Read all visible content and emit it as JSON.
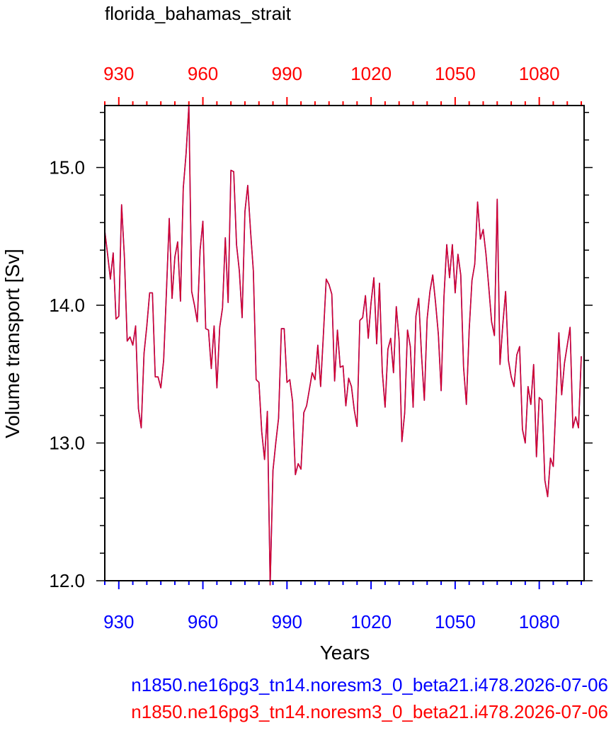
{
  "chart_data": {
    "type": "line",
    "title": "florida_bahamas_strait",
    "xlabel": "Years",
    "ylabel": "Volume transport [Sv]",
    "xlim": [
      925,
      1096
    ],
    "ylim": [
      12.0,
      15.45
    ],
    "x_ticks": [
      930,
      960,
      990,
      1020,
      1050,
      1080
    ],
    "x_tick_labels": [
      "930",
      "960",
      "990",
      "1020",
      "1050",
      "1080"
    ],
    "y_ticks": [
      12.0,
      13.0,
      14.0,
      15.0
    ],
    "y_tick_labels": [
      "12.0",
      "13.0",
      "14.0",
      "15.0"
    ],
    "colors": {
      "bottom_axis_labels": "#0000ff",
      "top_axis_labels": "#ff0000",
      "series_blue": "#0000ff",
      "series_red": "#ff0000",
      "frame": "#000000"
    },
    "series": [
      {
        "name": "n1850.ne16pg3_tn14.noresm3_0_beta21.i478.2026-07-06",
        "color": "#0000ff",
        "x_start": 925,
        "values": [
          14.54,
          14.37,
          14.19,
          14.38,
          13.9,
          13.92,
          14.73,
          14.35,
          13.74,
          13.77,
          13.71,
          13.85,
          13.25,
          13.11,
          13.65,
          13.85,
          14.09,
          14.09,
          13.48,
          13.48,
          13.4,
          13.6,
          14.1,
          14.63,
          14.05,
          14.35,
          14.46,
          14.03,
          14.85,
          15.1,
          15.45,
          14.1,
          14.0,
          13.88,
          14.4,
          14.61,
          13.83,
          13.82,
          13.54,
          13.85,
          13.4,
          13.84,
          13.98,
          14.49,
          14.02,
          14.98,
          14.97,
          14.44,
          14.25,
          13.91,
          14.68,
          14.87,
          14.54,
          14.25,
          13.46,
          13.44,
          13.08,
          12.88,
          13.23,
          11.97,
          12.8,
          13.0,
          13.18,
          13.83,
          13.83,
          13.44,
          13.46,
          13.3,
          12.77,
          12.85,
          12.81,
          13.22,
          13.27,
          13.39,
          13.51,
          13.46,
          13.71,
          13.41,
          13.79,
          14.19,
          14.15,
          14.08,
          13.45,
          13.82,
          13.55,
          13.56,
          13.27,
          13.47,
          13.41,
          13.24,
          13.12,
          13.89,
          13.91,
          14.07,
          13.76,
          14.02,
          14.2,
          13.72,
          14.16,
          13.52,
          13.26,
          13.68,
          13.76,
          13.51,
          13.99,
          13.75,
          13.01,
          13.22,
          13.82,
          13.7,
          13.26,
          13.92,
          14.05,
          13.64,
          13.31,
          13.9,
          14.1,
          14.22,
          14.02,
          13.79,
          13.38,
          14.06,
          14.44,
          14.2,
          14.44,
          14.09,
          14.37,
          14.22,
          13.55,
          13.28,
          13.82,
          14.18,
          14.3,
          14.75,
          14.48,
          14.55,
          14.37,
          14.13,
          13.88,
          13.78,
          14.77,
          13.57,
          13.86,
          14.1,
          13.6,
          13.48,
          13.41,
          13.64,
          13.7,
          13.1,
          13.0,
          13.41,
          13.28,
          13.57,
          12.9,
          13.33,
          13.31,
          12.73,
          12.61,
          12.89,
          12.83,
          13.31,
          13.8,
          13.35,
          13.58,
          13.71,
          13.84,
          13.11,
          13.19,
          13.11,
          13.63
        ]
      },
      {
        "name": "n1850.ne16pg3_tn14.noresm3_0_beta21.i478.2026-07-06",
        "color": "#ff0000",
        "x_start": 925,
        "values": [
          14.54,
          14.37,
          14.19,
          14.38,
          13.9,
          13.92,
          14.73,
          14.35,
          13.74,
          13.77,
          13.71,
          13.85,
          13.25,
          13.11,
          13.65,
          13.85,
          14.09,
          14.09,
          13.48,
          13.48,
          13.4,
          13.6,
          14.1,
          14.63,
          14.05,
          14.35,
          14.46,
          14.03,
          14.85,
          15.1,
          15.45,
          14.1,
          14.0,
          13.88,
          14.4,
          14.61,
          13.83,
          13.82,
          13.54,
          13.85,
          13.4,
          13.84,
          13.98,
          14.49,
          14.02,
          14.98,
          14.97,
          14.44,
          14.25,
          13.91,
          14.68,
          14.87,
          14.54,
          14.25,
          13.46,
          13.44,
          13.08,
          12.88,
          13.23,
          11.97,
          12.8,
          13.0,
          13.18,
          13.83,
          13.83,
          13.44,
          13.46,
          13.3,
          12.77,
          12.85,
          12.81,
          13.22,
          13.27,
          13.39,
          13.51,
          13.46,
          13.71,
          13.41,
          13.79,
          14.19,
          14.15,
          14.08,
          13.45,
          13.82,
          13.55,
          13.56,
          13.27,
          13.47,
          13.41,
          13.24,
          13.12,
          13.89,
          13.91,
          14.07,
          13.76,
          14.02,
          14.2,
          13.72,
          14.16,
          13.52,
          13.26,
          13.68,
          13.76,
          13.51,
          13.99,
          13.75,
          13.01,
          13.22,
          13.82,
          13.7,
          13.26,
          13.92,
          14.05,
          13.64,
          13.31,
          13.9,
          14.1,
          14.22,
          14.02,
          13.79,
          13.38,
          14.06,
          14.44,
          14.2,
          14.44,
          14.09,
          14.37,
          14.22,
          13.55,
          13.28,
          13.82,
          14.18,
          14.3,
          14.75,
          14.48,
          14.55,
          14.37,
          14.13,
          13.88,
          13.78,
          14.77,
          13.57,
          13.86,
          14.1,
          13.6,
          13.48,
          13.41,
          13.64,
          13.7,
          13.1,
          13.0,
          13.41,
          13.28,
          13.57,
          12.9,
          13.33,
          13.31,
          12.73,
          12.61,
          12.89,
          12.83,
          13.31,
          13.8,
          13.35,
          13.58,
          13.71,
          13.84,
          13.11,
          13.19,
          13.11,
          13.63
        ]
      }
    ]
  }
}
